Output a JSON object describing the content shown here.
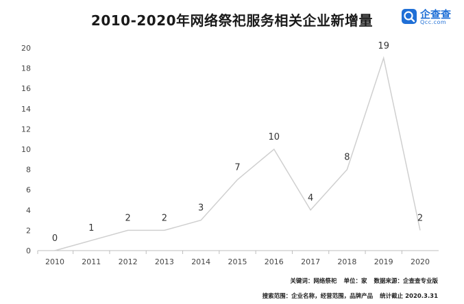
{
  "title": "2010-2020年网络祭祀服务相关企业新增量",
  "logo": {
    "name": "企查查",
    "domain": "Qcc.com"
  },
  "footer": {
    "keyword_label": "关键词：",
    "keyword": "网络祭祀",
    "unit_label": "单位：",
    "unit": "家",
    "source_label": "数据来源：",
    "source": "企查查专业版",
    "scope_label": "搜索范围：",
    "scope": "企业名称，经营范围，品牌产品",
    "cutoff_label": "统计截止",
    "cutoff": "2020.3.31"
  },
  "chart_data": {
    "type": "line",
    "title": "2010-2020年网络祭祀服务相关企业新增量",
    "xlabel": "",
    "ylabel": "",
    "categories": [
      "2010",
      "2011",
      "2012",
      "2013",
      "2014",
      "2015",
      "2016",
      "2017",
      "2018",
      "2019",
      "2020"
    ],
    "values": [
      0,
      1,
      2,
      2,
      3,
      7,
      10,
      4,
      8,
      19,
      2
    ],
    "ylim": [
      0,
      20
    ],
    "yticks": [
      0,
      2,
      4,
      6,
      8,
      10,
      12,
      14,
      16,
      18,
      20
    ],
    "grid": false,
    "legend": "none",
    "line_color": "#cfcfcf"
  }
}
